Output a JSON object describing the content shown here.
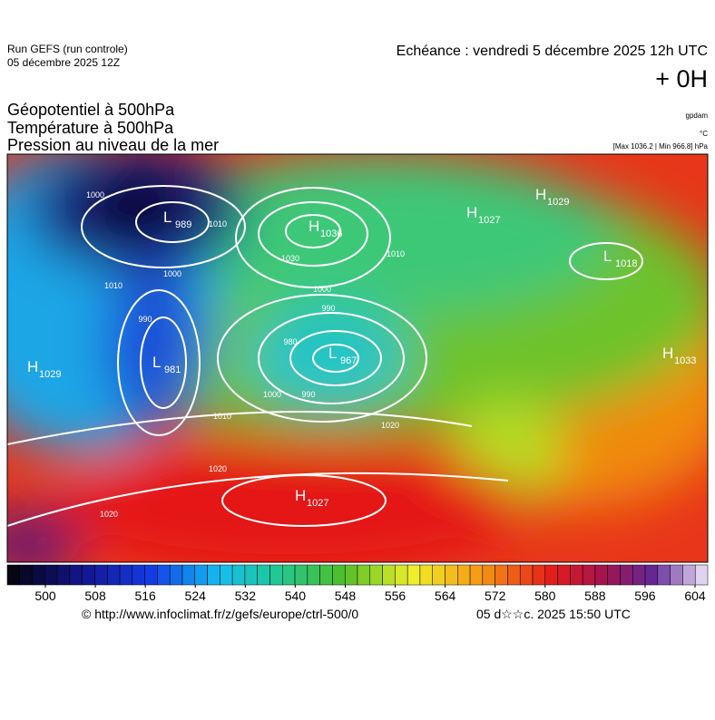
{
  "header": {
    "run": "Run GEFS (run controle)",
    "run_date": "05 décembre 2025 12Z",
    "echeance": "Echéance : vendredi 5 décembre 2025 12h UTC",
    "lead": "+ 0H"
  },
  "fields": [
    "Géopotentiel à 500hPa",
    "Température à 500hPa",
    "Pression au niveau de la mer"
  ],
  "units": [
    "gpdam",
    "°C",
    "[Max 1036.2 | Min 966.8] hPa"
  ],
  "centers": [
    {
      "letter": "L",
      "value": 989
    },
    {
      "letter": "H",
      "value": 1036
    },
    {
      "letter": "L",
      "value": 967
    },
    {
      "letter": "H",
      "value": 1027
    },
    {
      "letter": "H",
      "value": 1029
    },
    {
      "letter": "L",
      "value": 1018
    },
    {
      "letter": "H",
      "value": 1033
    },
    {
      "letter": "H",
      "value": 1029
    },
    {
      "letter": "L",
      "value": 981
    },
    {
      "letter": "H",
      "value": 1027
    }
  ],
  "isobar_labels": [
    1000,
    1010,
    1000,
    990,
    980,
    1000,
    990,
    1010,
    1020,
    1020,
    1010,
    1030,
    1000,
    990,
    1020,
    1010
  ],
  "colorbar_ticks": [
    500,
    508,
    516,
    524,
    532,
    540,
    548,
    556,
    564,
    572,
    580,
    588,
    596,
    604
  ],
  "footer": {
    "source": "© http://www.infoclimat.fr/z/gefs/europe/ctrl-500/0",
    "stamp": "05 d☆☆c. 2025 15:50 UTC"
  }
}
